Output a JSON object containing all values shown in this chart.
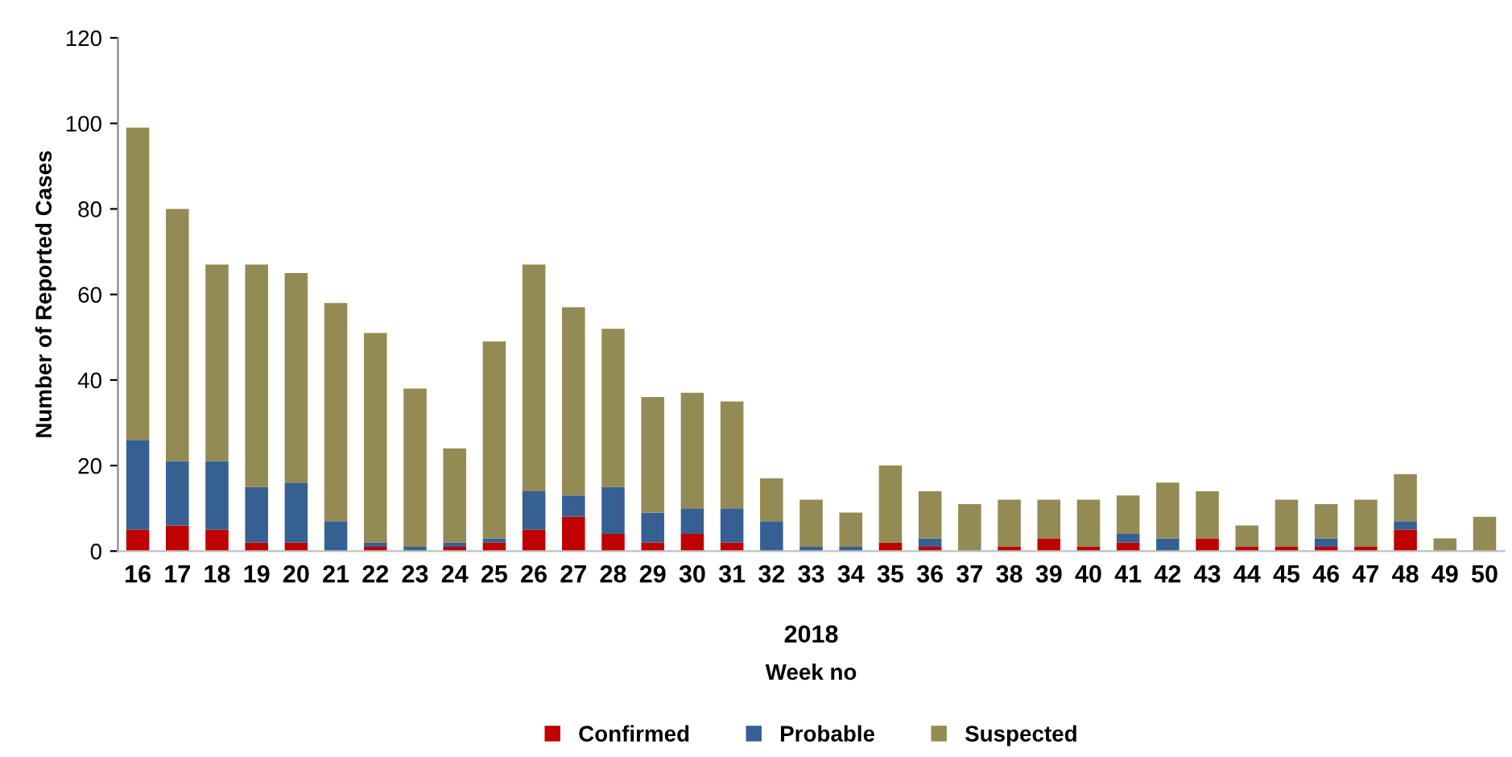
{
  "chart_data": {
    "type": "bar",
    "stacked": true,
    "xlabel": "Week no",
    "ylabel": "Number of Reported Cases",
    "annotations": [
      "2018"
    ],
    "categories": [
      "16",
      "17",
      "18",
      "19",
      "20",
      "21",
      "22",
      "23",
      "24",
      "25",
      "26",
      "27",
      "28",
      "29",
      "30",
      "31",
      "32",
      "33",
      "34",
      "35",
      "36",
      "37",
      "38",
      "39",
      "40",
      "41",
      "42",
      "43",
      "44",
      "45",
      "46",
      "47",
      "48",
      "49",
      "50"
    ],
    "series": [
      {
        "name": "Confirmed",
        "color": "#c00000",
        "values": [
          5,
          6,
          5,
          2,
          2,
          0,
          1,
          0,
          1,
          2,
          5,
          8,
          4,
          2,
          4,
          2,
          0,
          0,
          0,
          2,
          1,
          0,
          1,
          3,
          1,
          2,
          0,
          3,
          1,
          1,
          1,
          1,
          5,
          0,
          0
        ]
      },
      {
        "name": "Probable",
        "color": "#376092",
        "values": [
          21,
          15,
          16,
          13,
          14,
          7,
          1,
          1,
          1,
          1,
          9,
          5,
          11,
          7,
          6,
          8,
          7,
          1,
          1,
          0,
          2,
          0,
          0,
          0,
          0,
          2,
          3,
          0,
          0,
          0,
          2,
          0,
          2,
          0,
          0
        ]
      },
      {
        "name": "Suspected",
        "color": "#948a54",
        "values": [
          73,
          59,
          46,
          52,
          49,
          51,
          49,
          37,
          22,
          46,
          53,
          44,
          37,
          27,
          27,
          25,
          10,
          11,
          8,
          18,
          11,
          11,
          11,
          9,
          11,
          9,
          13,
          11,
          5,
          11,
          8,
          11,
          11,
          3,
          8
        ]
      }
    ],
    "ylim": [
      0,
      120
    ],
    "yticks": [
      0,
      20,
      40,
      60,
      80,
      100,
      120
    ],
    "grid": false,
    "legend": "bottom"
  }
}
